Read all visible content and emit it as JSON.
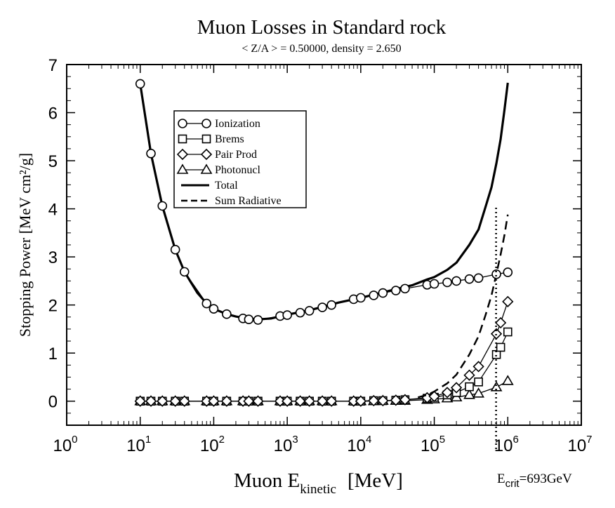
{
  "chart_data": {
    "type": "line",
    "title": "Muon Losses in Standard rock",
    "subtitle": "< Z/A > = 0.50000, density =  2.650",
    "xlabel": {
      "main": "Muon E",
      "sub": "kinetic",
      "unit": "[MeV]"
    },
    "ylabel": "Stopping Power [MeV cm²/g]",
    "x_scale": "log",
    "xlim": [
      1,
      10000000
    ],
    "ylim": [
      -0.5,
      7
    ],
    "x_ticks": [
      {
        "base": "10",
        "exp": "0",
        "value": 1
      },
      {
        "base": "10",
        "exp": "1",
        "value": 10
      },
      {
        "base": "10",
        "exp": "2",
        "value": 100
      },
      {
        "base": "10",
        "exp": "3",
        "value": 1000
      },
      {
        "base": "10",
        "exp": "4",
        "value": 10000
      },
      {
        "base": "10",
        "exp": "5",
        "value": 100000
      },
      {
        "base": "10",
        "exp": "6",
        "value": 1000000
      },
      {
        "base": "10",
        "exp": "7",
        "value": 10000000
      }
    ],
    "y_ticks": [
      "0",
      "1",
      "2",
      "3",
      "4",
      "5",
      "6",
      "7"
    ],
    "grid": false,
    "legend_position": "upper-left",
    "annotation": {
      "text": "E",
      "sub": "crit",
      "rest": "=693GeV",
      "x": 693000
    },
    "series": [
      {
        "name": "Ionization",
        "marker": "circle",
        "style": "solid",
        "x": [
          10,
          14,
          20,
          30,
          40,
          80,
          100,
          150,
          250,
          300,
          400,
          800,
          1000,
          1500,
          2000,
          3000,
          4000,
          8000,
          10000,
          15000,
          20000,
          30000,
          40000,
          80000,
          100000,
          150000,
          200000,
          300000,
          400000,
          700000,
          1000000
        ],
        "y": [
          6.6,
          5.15,
          4.06,
          3.15,
          2.69,
          2.03,
          1.92,
          1.81,
          1.72,
          1.7,
          1.69,
          1.77,
          1.79,
          1.84,
          1.88,
          1.95,
          2.0,
          2.12,
          2.15,
          2.2,
          2.25,
          2.3,
          2.34,
          2.42,
          2.44,
          2.47,
          2.5,
          2.54,
          2.56,
          2.64,
          2.68
        ]
      },
      {
        "name": "Brems",
        "marker": "square",
        "style": "solid",
        "x": [
          10,
          14,
          20,
          30,
          40,
          80,
          100,
          150,
          250,
          300,
          400,
          800,
          1000,
          1500,
          2000,
          3000,
          4000,
          8000,
          10000,
          15000,
          20000,
          30000,
          40000,
          80000,
          100000,
          150000,
          200000,
          300000,
          400000,
          700000,
          800000,
          1000000
        ],
        "y": [
          0,
          0,
          0,
          0,
          0,
          0,
          0,
          0,
          0,
          0,
          0,
          0,
          0,
          0,
          0,
          0,
          0,
          0,
          0,
          0.01,
          0.01,
          0.02,
          0.03,
          0.06,
          0.08,
          0.13,
          0.18,
          0.3,
          0.4,
          0.97,
          1.12,
          1.44
        ]
      },
      {
        "name": "Pair Prod",
        "marker": "diamond",
        "style": "solid",
        "x": [
          10,
          14,
          20,
          30,
          40,
          80,
          100,
          150,
          250,
          300,
          400,
          800,
          1000,
          1500,
          2000,
          3000,
          4000,
          8000,
          10000,
          15000,
          20000,
          30000,
          40000,
          80000,
          100000,
          150000,
          200000,
          300000,
          400000,
          700000,
          800000,
          1000000
        ],
        "y": [
          0,
          0,
          0,
          0,
          0,
          0,
          0,
          0,
          0,
          0,
          0,
          0,
          0,
          0,
          0,
          0,
          0,
          0,
          0,
          0.01,
          0.01,
          0.02,
          0.03,
          0.07,
          0.1,
          0.18,
          0.28,
          0.54,
          0.72,
          1.4,
          1.63,
          2.07
        ]
      },
      {
        "name": "Photonucl",
        "marker": "triangle",
        "style": "solid",
        "x": [
          10,
          14,
          20,
          30,
          40,
          80,
          100,
          150,
          250,
          300,
          400,
          800,
          1000,
          1500,
          2000,
          3000,
          4000,
          8000,
          10000,
          15000,
          20000,
          30000,
          40000,
          80000,
          100000,
          150000,
          200000,
          300000,
          400000,
          700000,
          1000000
        ],
        "y": [
          0,
          0,
          0,
          0,
          0,
          0,
          0,
          0,
          0,
          0,
          0,
          0,
          0,
          0,
          0,
          0,
          0,
          0,
          0,
          0,
          0.01,
          0.01,
          0.01,
          0.03,
          0.04,
          0.06,
          0.08,
          0.13,
          0.16,
          0.29,
          0.42
        ]
      },
      {
        "name": "Total",
        "marker": "none",
        "style": "solid-thick",
        "x": [
          10,
          14,
          20,
          30,
          40,
          60,
          80,
          100,
          150,
          200,
          300,
          400,
          600,
          1000,
          2000,
          3000,
          5000,
          10000,
          20000,
          30000,
          50000,
          80000,
          100000,
          150000,
          200000,
          300000,
          400000,
          500000,
          600000,
          700000,
          800000,
          900000,
          1000000
        ],
        "y": [
          6.6,
          5.15,
          4.06,
          3.15,
          2.69,
          2.25,
          2.03,
          1.92,
          1.81,
          1.76,
          1.71,
          1.7,
          1.72,
          1.8,
          1.89,
          1.96,
          2.05,
          2.15,
          2.26,
          2.33,
          2.41,
          2.53,
          2.58,
          2.73,
          2.88,
          3.25,
          3.57,
          4.05,
          4.45,
          4.95,
          5.45,
          6.05,
          6.62
        ]
      },
      {
        "name": "Sum Radiative",
        "marker": "none",
        "style": "dashed",
        "x": [
          60000,
          80000,
          100000,
          150000,
          200000,
          300000,
          400000,
          500000,
          600000,
          700000,
          800000,
          900000,
          1000000
        ],
        "y": [
          0.08,
          0.13,
          0.2,
          0.37,
          0.55,
          0.97,
          1.35,
          1.8,
          2.2,
          2.65,
          3.05,
          3.45,
          3.88
        ]
      }
    ]
  }
}
